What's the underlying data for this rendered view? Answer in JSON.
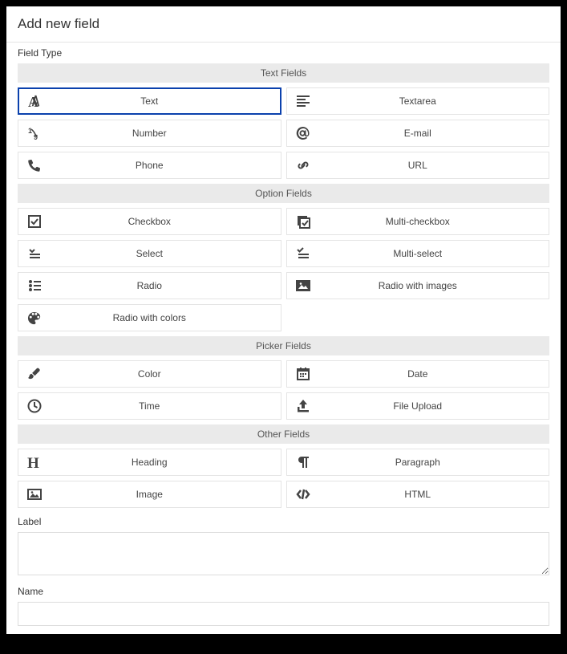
{
  "title": "Add new field",
  "fieldTypeLabel": "Field Type",
  "groups": [
    {
      "header": "Text Fields",
      "options": [
        {
          "icon": "font",
          "label": "Text",
          "selected": true
        },
        {
          "icon": "align-left",
          "label": "Textarea"
        },
        {
          "icon": "number",
          "label": "Number"
        },
        {
          "icon": "at",
          "label": "E-mail"
        },
        {
          "icon": "phone",
          "label": "Phone"
        },
        {
          "icon": "link",
          "label": "URL"
        }
      ]
    },
    {
      "header": "Option Fields",
      "options": [
        {
          "icon": "check-square",
          "label": "Checkbox"
        },
        {
          "icon": "multi-check",
          "label": "Multi-checkbox"
        },
        {
          "icon": "select",
          "label": "Select"
        },
        {
          "icon": "multi-select",
          "label": "Multi-select"
        },
        {
          "icon": "radio-list",
          "label": "Radio"
        },
        {
          "icon": "image-radio",
          "label": "Radio with images"
        },
        {
          "icon": "palette",
          "label": "Radio with colors"
        }
      ]
    },
    {
      "header": "Picker Fields",
      "options": [
        {
          "icon": "brush",
          "label": "Color"
        },
        {
          "icon": "calendar",
          "label": "Date"
        },
        {
          "icon": "clock",
          "label": "Time"
        },
        {
          "icon": "upload",
          "label": "File Upload"
        }
      ]
    },
    {
      "header": "Other Fields",
      "options": [
        {
          "icon": "heading",
          "label": "Heading"
        },
        {
          "icon": "paragraph",
          "label": "Paragraph"
        },
        {
          "icon": "image",
          "label": "Image"
        },
        {
          "icon": "code",
          "label": "HTML"
        }
      ]
    }
  ],
  "labelField": {
    "label": "Label",
    "value": ""
  },
  "nameField": {
    "label": "Name",
    "value": ""
  }
}
